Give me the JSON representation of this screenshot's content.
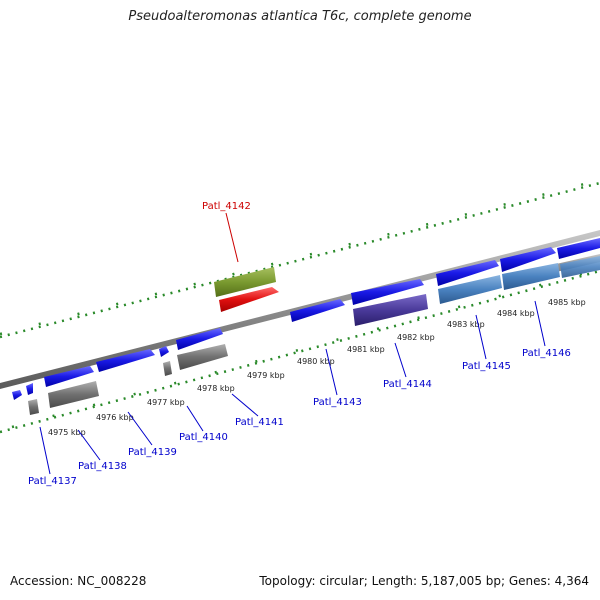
{
  "title": "Pseudoalteromonas atlantica T6c, complete genome",
  "accession": "Accession: NC_008228",
  "topology": "Topology: circular; Length: 5,187,005 bp; Genes: 4,364",
  "scale_labels": [
    "4975 kbp",
    "4976 kbp",
    "4977 kbp",
    "4978 kbp",
    "4979 kbp",
    "4980 kbp",
    "4981 kbp",
    "4982 kbp",
    "4983 kbp",
    "4984 kbp",
    "4985 kbp"
  ],
  "gene_labels": [
    "Patl_4137",
    "Patl_4138",
    "Patl_4139",
    "Patl_4140",
    "Patl_4141",
    "Patl_4142",
    "Patl_4143",
    "Patl_4144",
    "Patl_4145",
    "Patl_4146"
  ],
  "colors": {
    "backbone": "#8c8c8c",
    "tick": "#2a8a2a",
    "cds": "#1a1ae6",
    "gene": "#707070",
    "trna": "#7a9a30",
    "trna_gene": "#e01010",
    "operon_blue": "#4a82c0",
    "operon_purple": "#4a3a9a",
    "label_default": "#0000cc",
    "label_highlight": "#cc0000"
  }
}
